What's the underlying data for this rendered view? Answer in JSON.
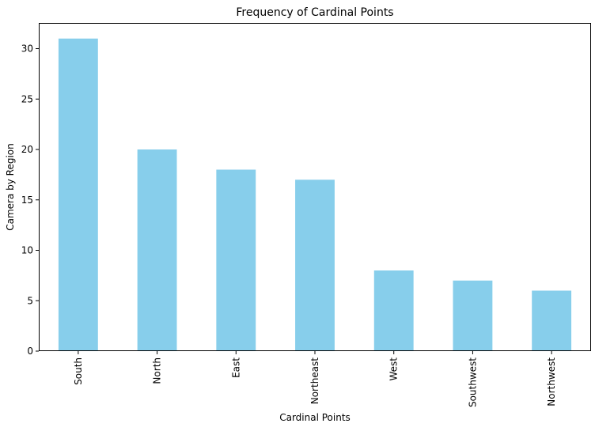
{
  "chart_data": {
    "type": "bar",
    "title": "Frequency of Cardinal Points",
    "xlabel": "Cardinal Points",
    "ylabel": "Camera by Region",
    "categories": [
      "South",
      "North",
      "East",
      "Northeast",
      "West",
      "Southwest",
      "Northwest"
    ],
    "values": [
      31,
      20,
      18,
      17,
      8,
      7,
      6
    ],
    "ylim": [
      0,
      32.55
    ],
    "yticks": [
      0,
      5,
      10,
      15,
      20,
      25,
      30
    ],
    "bar_color": "#87CEEB",
    "grid": false,
    "legend": "none"
  }
}
